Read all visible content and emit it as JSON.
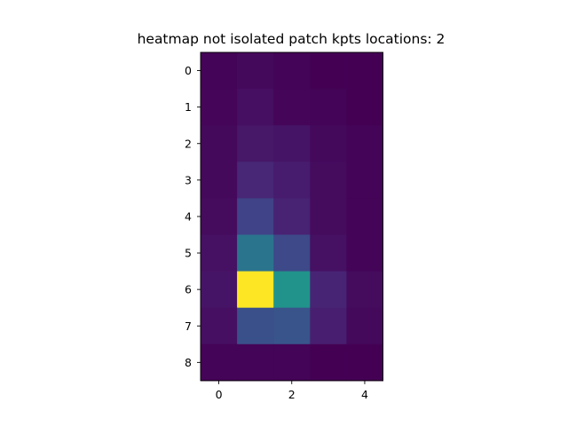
{
  "chart_data": {
    "type": "heatmap",
    "title": "heatmap not isolated patch kpts locations: 2",
    "xlabel": "",
    "ylabel": "",
    "colormap": "viridis",
    "rows": 9,
    "cols": 5,
    "xticks": [
      "0",
      "2",
      "4"
    ],
    "xtick_values": [
      0,
      2,
      4
    ],
    "yticks": [
      "0",
      "1",
      "2",
      "3",
      "4",
      "5",
      "6",
      "7",
      "8"
    ],
    "ytick_values": [
      0,
      1,
      2,
      3,
      4,
      5,
      6,
      7,
      8
    ],
    "value_range": [
      0,
      1
    ],
    "values": [
      [
        0.01,
        0.03,
        0.01,
        0.0,
        0.0
      ],
      [
        0.02,
        0.05,
        0.02,
        0.01,
        0.0
      ],
      [
        0.03,
        0.08,
        0.07,
        0.03,
        0.01
      ],
      [
        0.03,
        0.14,
        0.1,
        0.04,
        0.01
      ],
      [
        0.04,
        0.25,
        0.12,
        0.04,
        0.01
      ],
      [
        0.06,
        0.48,
        0.28,
        0.06,
        0.01
      ],
      [
        0.07,
        1.0,
        0.63,
        0.13,
        0.04
      ],
      [
        0.05,
        0.31,
        0.33,
        0.11,
        0.03
      ],
      [
        0.01,
        0.01,
        0.01,
        0.0,
        0.0
      ]
    ]
  }
}
